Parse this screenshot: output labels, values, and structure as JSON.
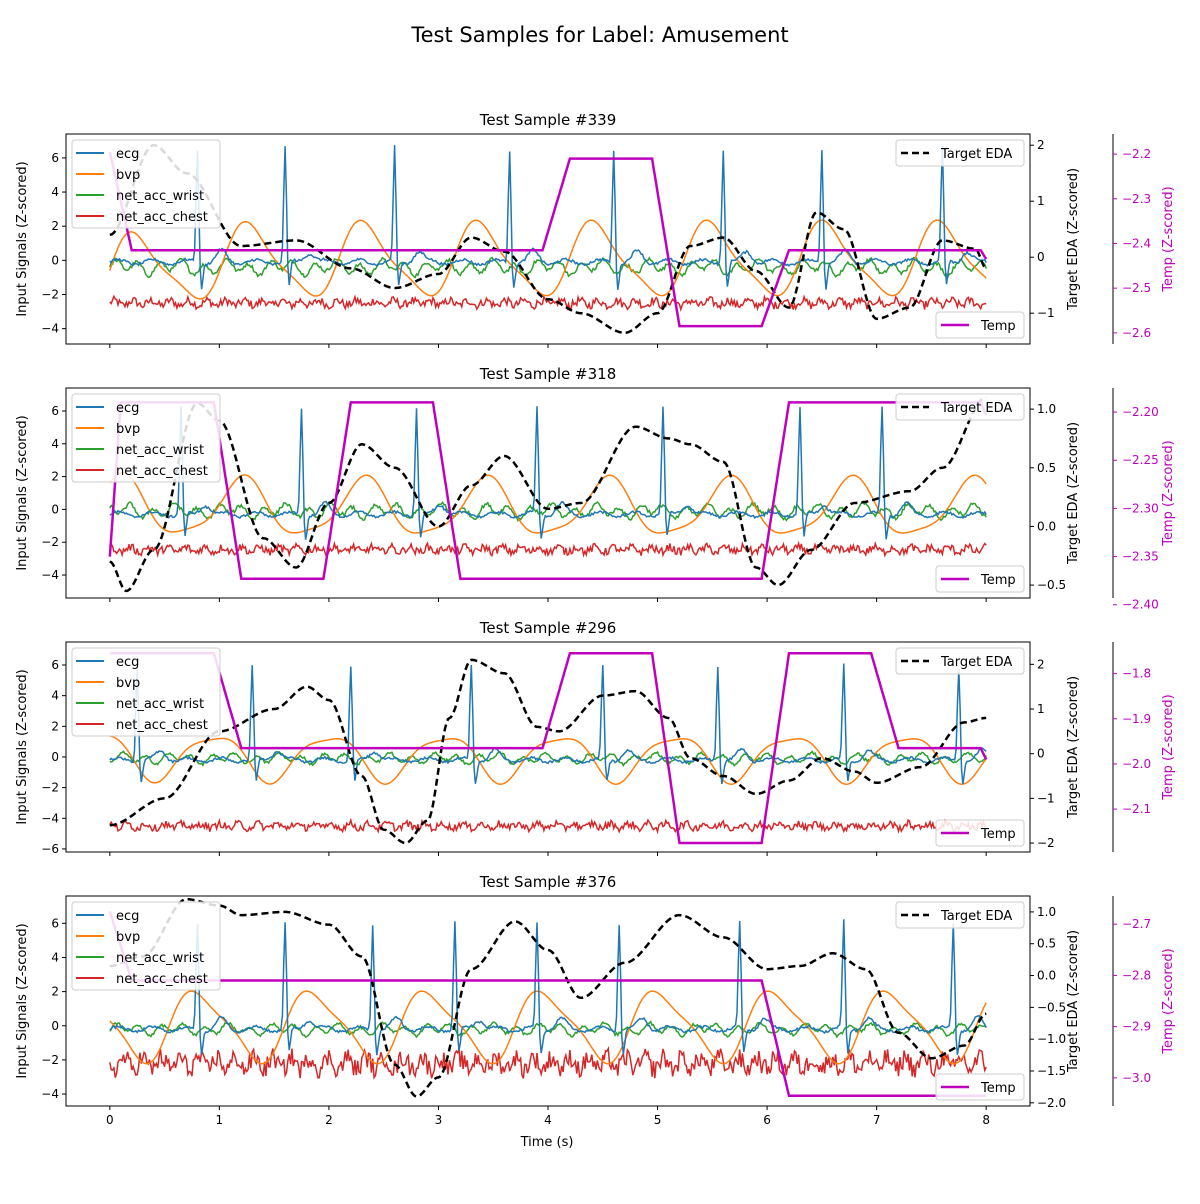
{
  "title": "Test Samples for Label: Amusement",
  "xlabel": "Time (s)",
  "colors": {
    "ecg": "#1f77b4",
    "bvp": "#ff7f0e",
    "net_acc_wrist": "#2ca02c",
    "net_acc_chest": "#d62728",
    "eda": "#000000",
    "temp": "#bf00bf"
  },
  "chart_data": [
    {
      "type": "line",
      "title": "Test Sample #339",
      "xlabel": "Time (s)",
      "ylabel_left": "Input Signals (Z-scored)",
      "ylabel_right": "Target EDA (Z-scored)",
      "ylabel_temp": "Temp (Z-scored)",
      "xlim": [
        -0.4,
        8.4
      ],
      "ylim_left": [
        -4.9,
        7.4
      ],
      "ylim_right": [
        -1.55,
        2.2
      ],
      "ylim_temp": [
        -2.625,
        -2.155
      ],
      "x_ticks": [
        0,
        1,
        2,
        3,
        4,
        5,
        6,
        7,
        8
      ],
      "x_tick_labels": [
        "0",
        "1",
        "2",
        "3",
        "4",
        "5",
        "6",
        "7",
        "8"
      ],
      "left_ticks": [
        -4,
        -2,
        0,
        2,
        4,
        6
      ],
      "left_tick_labels": [
        "−4",
        "−2",
        "0",
        "2",
        "4",
        "6"
      ],
      "right_ticks": [
        -1,
        0,
        1,
        2
      ],
      "right_tick_labels": [
        "−1",
        "0",
        "1",
        "2"
      ],
      "temp_ticks": [
        -2.6,
        -2.5,
        -2.4,
        -2.3,
        -2.2
      ],
      "temp_tick_labels": [
        "−2.6",
        "−2.5",
        "−2.4",
        "−2.3",
        "−2.2"
      ],
      "legend_left": [
        "ecg",
        "bvp",
        "net_acc_wrist",
        "net_acc_chest"
      ],
      "legend_eda": "Target EDA",
      "legend_temp": "Temp",
      "series": {
        "ecg": {
          "base": -0.1,
          "peaks": [
            0.8,
            1.6,
            2.6,
            3.65,
            4.6,
            5.6,
            6.5,
            7.6
          ],
          "peak_height": 6.7
        },
        "bvp": {
          "amplitude": 2.4,
          "frequency": 0.95,
          "phase": 0.2,
          "offset": -1.0
        },
        "net_acc_wrist": {
          "mean": -0.4,
          "amplitude": 0.45
        },
        "net_acc_chest": {
          "mean": -2.5,
          "amplitude": 0.3
        },
        "eda": [
          [
            0,
            0.4
          ],
          [
            0.4,
            2.0
          ],
          [
            0.7,
            1.5
          ],
          [
            1.2,
            0.2
          ],
          [
            1.7,
            0.3
          ],
          [
            2.2,
            -0.2
          ],
          [
            2.6,
            -0.55
          ],
          [
            3.0,
            -0.3
          ],
          [
            3.3,
            0.35
          ],
          [
            3.6,
            0.1
          ],
          [
            4.0,
            -0.75
          ],
          [
            4.3,
            -1.0
          ],
          [
            4.7,
            -1.35
          ],
          [
            5.0,
            -1.0
          ],
          [
            5.3,
            0.2
          ],
          [
            5.6,
            0.35
          ],
          [
            5.9,
            -0.25
          ],
          [
            6.2,
            -0.9
          ],
          [
            6.45,
            0.8
          ],
          [
            6.7,
            0.5
          ],
          [
            7.0,
            -1.1
          ],
          [
            7.3,
            -0.9
          ],
          [
            7.6,
            0.3
          ],
          [
            7.9,
            0.15
          ],
          [
            8.0,
            -0.2
          ]
        ],
        "temp": [
          [
            0,
            -2.195
          ],
          [
            0.2,
            -2.415
          ],
          [
            3.95,
            -2.415
          ],
          [
            4.2,
            -2.21
          ],
          [
            4.95,
            -2.21
          ],
          [
            5.2,
            -2.585
          ],
          [
            5.95,
            -2.585
          ],
          [
            6.2,
            -2.415
          ],
          [
            7.95,
            -2.415
          ],
          [
            8.0,
            -2.435
          ]
        ]
      }
    },
    {
      "type": "line",
      "title": "Test Sample #318",
      "xlabel": "Time (s)",
      "ylabel_left": "Input Signals (Z-scored)",
      "ylabel_right": "Target EDA (Z-scored)",
      "ylabel_temp": "Temp (Z-scored)",
      "xlim": [
        -0.4,
        8.4
      ],
      "ylim_left": [
        -5.4,
        7.4
      ],
      "ylim_right": [
        -0.61,
        1.18
      ],
      "ylim_temp": [
        -2.393,
        -2.175
      ],
      "x_ticks": [
        0,
        1,
        2,
        3,
        4,
        5,
        6,
        7,
        8
      ],
      "x_tick_labels": [
        "0",
        "1",
        "2",
        "3",
        "4",
        "5",
        "6",
        "7",
        "8"
      ],
      "left_ticks": [
        -4,
        -2,
        0,
        2,
        4,
        6
      ],
      "left_tick_labels": [
        "−4",
        "−2",
        "0",
        "2",
        "4",
        "6"
      ],
      "right_ticks": [
        -0.5,
        0.0,
        0.5,
        1.0
      ],
      "right_tick_labels": [
        "−0.5",
        "0.0",
        "0.5",
        "1.0"
      ],
      "temp_ticks": [
        -2.4,
        -2.35,
        -2.3,
        -2.25,
        -2.2
      ],
      "temp_tick_labels": [
        "−2.40",
        "−2.35",
        "−2.30",
        "−2.25",
        "−2.20"
      ],
      "legend_left": [
        "ecg",
        "bvp",
        "net_acc_wrist",
        "net_acc_chest"
      ],
      "legend_eda": "Target EDA",
      "legend_temp": "Temp",
      "series": {
        "ecg": {
          "base": -0.3,
          "peaks": [
            0.65,
            1.75,
            2.8,
            3.9,
            5.05,
            6.3,
            7.05
          ],
          "peak_height": 6.6
        },
        "bvp": {
          "amplitude": 2.0,
          "frequency": 0.9,
          "phase": 1.0,
          "offset": 0.2
        },
        "net_acc_wrist": {
          "mean": -0.1,
          "amplitude": 0.45
        },
        "net_acc_chest": {
          "mean": -2.45,
          "amplitude": 0.3
        },
        "eda": [
          [
            0,
            -0.3
          ],
          [
            0.15,
            -0.55
          ],
          [
            0.4,
            -0.2
          ],
          [
            0.8,
            1.05
          ],
          [
            1.0,
            0.9
          ],
          [
            1.4,
            -0.1
          ],
          [
            1.7,
            -0.35
          ],
          [
            2.0,
            0.2
          ],
          [
            2.3,
            0.7
          ],
          [
            2.6,
            0.5
          ],
          [
            3.0,
            0.0
          ],
          [
            3.3,
            0.35
          ],
          [
            3.6,
            0.6
          ],
          [
            4.0,
            0.15
          ],
          [
            4.3,
            0.2
          ],
          [
            4.8,
            0.85
          ],
          [
            5.1,
            0.75
          ],
          [
            5.3,
            0.7
          ],
          [
            5.6,
            0.55
          ],
          [
            5.9,
            -0.35
          ],
          [
            6.1,
            -0.5
          ],
          [
            6.4,
            -0.2
          ],
          [
            6.8,
            0.2
          ],
          [
            7.3,
            0.3
          ],
          [
            7.6,
            0.5
          ],
          [
            8.0,
            1.1
          ]
        ],
        "temp": [
          [
            0,
            -2.35
          ],
          [
            0.1,
            -2.19
          ],
          [
            0.95,
            -2.19
          ],
          [
            1.2,
            -2.373
          ],
          [
            1.95,
            -2.373
          ],
          [
            2.2,
            -2.19
          ],
          [
            2.95,
            -2.19
          ],
          [
            3.2,
            -2.373
          ],
          [
            5.95,
            -2.373
          ],
          [
            6.2,
            -2.19
          ],
          [
            7.95,
            -2.19
          ],
          [
            8.0,
            -2.203
          ]
        ]
      }
    },
    {
      "type": "line",
      "title": "Test Sample #296",
      "xlabel": "Time (s)",
      "ylabel_left": "Input Signals (Z-scored)",
      "ylabel_right": "Target EDA (Z-scored)",
      "ylabel_temp": "Temp (Z-scored)",
      "xlim": [
        -0.4,
        8.4
      ],
      "ylim_left": [
        -6.2,
        7.5
      ],
      "ylim_right": [
        -2.2,
        2.5
      ],
      "ylim_temp": [
        -2.195,
        -1.73
      ],
      "x_ticks": [
        0,
        1,
        2,
        3,
        4,
        5,
        6,
        7,
        8
      ],
      "x_tick_labels": [
        "0",
        "1",
        "2",
        "3",
        "4",
        "5",
        "6",
        "7",
        "8"
      ],
      "left_ticks": [
        -6,
        -4,
        -2,
        0,
        2,
        4,
        6
      ],
      "left_tick_labels": [
        "−6",
        "−4",
        "−2",
        "0",
        "2",
        "4",
        "6"
      ],
      "right_ticks": [
        -2,
        -1,
        0,
        1,
        2
      ],
      "right_tick_labels": [
        "−2",
        "−1",
        "0",
        "1",
        "2"
      ],
      "temp_ticks": [
        -2.1,
        -2.0,
        -1.9,
        -1.8
      ],
      "temp_tick_labels": [
        "−2.1",
        "−2.0",
        "−1.9",
        "−1.8"
      ],
      "legend_left": [
        "ecg",
        "bvp",
        "net_acc_wrist",
        "net_acc_chest"
      ],
      "legend_eda": "Target EDA",
      "legend_temp": "Temp",
      "series": {
        "ecg": {
          "base": -0.2,
          "peaks": [
            0.25,
            1.3,
            2.2,
            3.3,
            4.5,
            5.55,
            6.7,
            7.75
          ],
          "peak_height": 6.2
        },
        "bvp": {
          "amplitude": 1.7,
          "frequency": 0.95,
          "phase": 2.2,
          "offset": 0.2
        },
        "net_acc_wrist": {
          "mean": -0.1,
          "amplitude": 0.35
        },
        "net_acc_chest": {
          "mean": -4.5,
          "amplitude": 0.3
        },
        "eda": [
          [
            0,
            -1.6
          ],
          [
            0.5,
            -1.0
          ],
          [
            1.0,
            0.5
          ],
          [
            1.5,
            1.0
          ],
          [
            1.8,
            1.5
          ],
          [
            2.0,
            1.2
          ],
          [
            2.3,
            -0.5
          ],
          [
            2.5,
            -1.7
          ],
          [
            2.7,
            -2.0
          ],
          [
            2.9,
            -1.5
          ],
          [
            3.1,
            0.8
          ],
          [
            3.3,
            2.1
          ],
          [
            3.6,
            1.8
          ],
          [
            3.9,
            0.6
          ],
          [
            4.1,
            0.5
          ],
          [
            4.5,
            1.3
          ],
          [
            4.8,
            1.4
          ],
          [
            5.1,
            0.8
          ],
          [
            5.3,
            -0.1
          ],
          [
            5.6,
            -0.5
          ],
          [
            5.9,
            -0.9
          ],
          [
            6.2,
            -0.6
          ],
          [
            6.5,
            -0.1
          ],
          [
            6.8,
            -0.4
          ],
          [
            7.0,
            -0.65
          ],
          [
            7.4,
            -0.3
          ],
          [
            7.8,
            0.7
          ],
          [
            8.0,
            0.8
          ]
        ],
        "temp": [
          [
            0,
            -1.755
          ],
          [
            0.95,
            -1.755
          ],
          [
            1.2,
            -1.965
          ],
          [
            3.95,
            -1.965
          ],
          [
            4.2,
            -1.755
          ],
          [
            4.95,
            -1.755
          ],
          [
            5.2,
            -2.175
          ],
          [
            5.95,
            -2.175
          ],
          [
            6.2,
            -1.755
          ],
          [
            6.95,
            -1.755
          ],
          [
            7.2,
            -1.965
          ],
          [
            7.95,
            -1.965
          ],
          [
            8.0,
            -1.99
          ]
        ]
      }
    },
    {
      "type": "line",
      "title": "Test Sample #376",
      "xlabel": "Time (s)",
      "ylabel_left": "Input Signals (Z-scored)",
      "ylabel_right": "Target EDA (Z-scored)",
      "ylabel_temp": "Temp (Z-scored)",
      "xlim": [
        -0.4,
        8.4
      ],
      "ylim_left": [
        -4.7,
        7.6
      ],
      "ylim_right": [
        -2.05,
        1.25
      ],
      "ylim_temp": [
        -3.055,
        -2.645
      ],
      "x_ticks": [
        0,
        1,
        2,
        3,
        4,
        5,
        6,
        7,
        8
      ],
      "x_tick_labels": [
        "0",
        "1",
        "2",
        "3",
        "4",
        "5",
        "6",
        "7",
        "8"
      ],
      "left_ticks": [
        -4,
        -2,
        0,
        2,
        4,
        6
      ],
      "left_tick_labels": [
        "−4",
        "−2",
        "0",
        "2",
        "4",
        "6"
      ],
      "right_ticks": [
        -2.0,
        -1.5,
        -1.0,
        -0.5,
        0.0,
        0.5,
        1.0
      ],
      "right_tick_labels": [
        "−2.0",
        "−1.5",
        "−1.0",
        "−0.5",
        "0.0",
        "0.5",
        "1.0"
      ],
      "temp_ticks": [
        -3.0,
        -2.9,
        -2.8,
        -2.7
      ],
      "temp_tick_labels": [
        "−3.0",
        "−2.9",
        "−2.8",
        "−2.7"
      ],
      "legend_left": [
        "ecg",
        "bvp",
        "net_acc_wrist",
        "net_acc_chest"
      ],
      "legend_eda": "Target EDA",
      "legend_temp": "Temp",
      "series": {
        "ecg": {
          "base": -0.2,
          "peaks": [
            0.8,
            1.6,
            2.4,
            3.15,
            3.9,
            4.65,
            5.75,
            6.7,
            7.7
          ],
          "peak_height": 6.3
        },
        "bvp": {
          "amplitude": 2.3,
          "frequency": 0.95,
          "phase": 3.0,
          "offset": 0.0
        },
        "net_acc_wrist": {
          "mean": -0.2,
          "amplitude": 0.35
        },
        "net_acc_chest": {
          "mean": -2.2,
          "amplitude": 0.7
        },
        "eda": [
          [
            0,
            0.15
          ],
          [
            0.3,
            0.3
          ],
          [
            0.7,
            1.2
          ],
          [
            1.0,
            1.1
          ],
          [
            1.2,
            0.95
          ],
          [
            1.6,
            1.0
          ],
          [
            2.0,
            0.8
          ],
          [
            2.3,
            0.3
          ],
          [
            2.6,
            -1.4
          ],
          [
            2.8,
            -1.9
          ],
          [
            3.0,
            -1.6
          ],
          [
            3.3,
            0.1
          ],
          [
            3.7,
            0.85
          ],
          [
            4.0,
            0.4
          ],
          [
            4.3,
            -0.35
          ],
          [
            4.7,
            0.2
          ],
          [
            5.2,
            0.95
          ],
          [
            5.6,
            0.6
          ],
          [
            6.0,
            0.1
          ],
          [
            6.3,
            0.15
          ],
          [
            6.6,
            0.35
          ],
          [
            6.9,
            0.1
          ],
          [
            7.2,
            -0.9
          ],
          [
            7.5,
            -1.3
          ],
          [
            7.8,
            -1.1
          ],
          [
            8.0,
            -0.6
          ]
        ],
        "temp": [
          [
            0,
            -2.675
          ],
          [
            0.2,
            -2.81
          ],
          [
            5.95,
            -2.81
          ],
          [
            6.2,
            -3.035
          ],
          [
            7.95,
            -3.035
          ],
          [
            8.0,
            -3.035
          ]
        ]
      }
    }
  ]
}
